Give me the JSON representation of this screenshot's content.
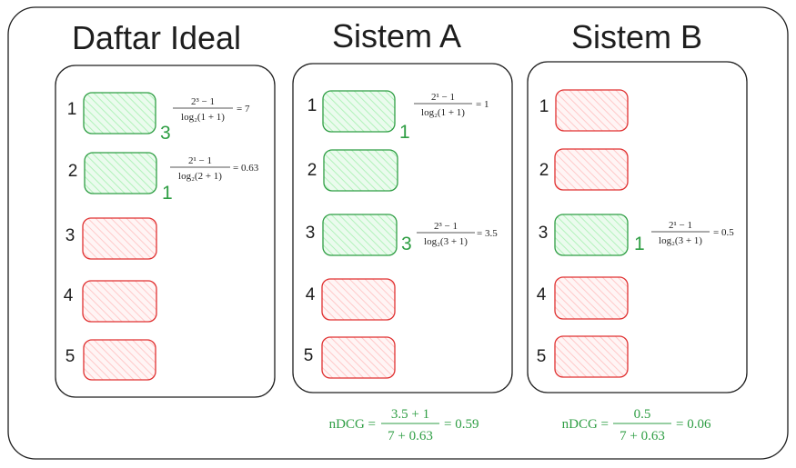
{
  "colors": {
    "relevant_stroke": "#2f9e44",
    "relevant_fill": "#b2f2bb",
    "nonrelevant_stroke": "#e03131",
    "nonrelevant_fill": "#ffc9c9",
    "ink": "#1e1e1e"
  },
  "panels": [
    {
      "title": "Daftar Ideal",
      "items": [
        {
          "rank": "1",
          "relevant": true,
          "score": "3",
          "formula": {
            "num": "2³ − 1",
            "den": "log₂(1 + 1)",
            "result": "= 7"
          }
        },
        {
          "rank": "2",
          "relevant": true,
          "score": "1",
          "formula": {
            "num": "2¹ − 1",
            "den": "log₂(2 + 1)",
            "result": "= 0.63"
          }
        },
        {
          "rank": "3",
          "relevant": false
        },
        {
          "rank": "4",
          "relevant": false
        },
        {
          "rank": "5",
          "relevant": false
        }
      ]
    },
    {
      "title": "Sistem A",
      "items": [
        {
          "rank": "1",
          "relevant": true,
          "score": "1",
          "formula": {
            "num": "2¹ − 1",
            "den": "log₂(1 + 1)",
            "result": "= 1"
          }
        },
        {
          "rank": "2",
          "relevant": true
        },
        {
          "rank": "3",
          "relevant": true,
          "score": "3",
          "formula": {
            "num": "2³ − 1",
            "den": "log₂(3 + 1)",
            "result": "= 3.5"
          }
        },
        {
          "rank": "4",
          "relevant": false
        },
        {
          "rank": "5",
          "relevant": false
        }
      ],
      "ndcg": {
        "label": "nDCG =",
        "num": "3.5 + 1",
        "den": "7 + 0.63",
        "result": "= 0.59"
      }
    },
    {
      "title": "Sistem B",
      "items": [
        {
          "rank": "1",
          "relevant": false
        },
        {
          "rank": "2",
          "relevant": false
        },
        {
          "rank": "3",
          "relevant": true,
          "score": "1",
          "formula": {
            "num": "2¹ − 1",
            "den": "log₂(3 + 1)",
            "result": "= 0.5"
          }
        },
        {
          "rank": "4",
          "relevant": false
        },
        {
          "rank": "5",
          "relevant": false
        }
      ],
      "ndcg": {
        "label": "nDCG =",
        "num": "0.5",
        "den": "7 + 0.63",
        "result": "= 0.06"
      }
    }
  ]
}
